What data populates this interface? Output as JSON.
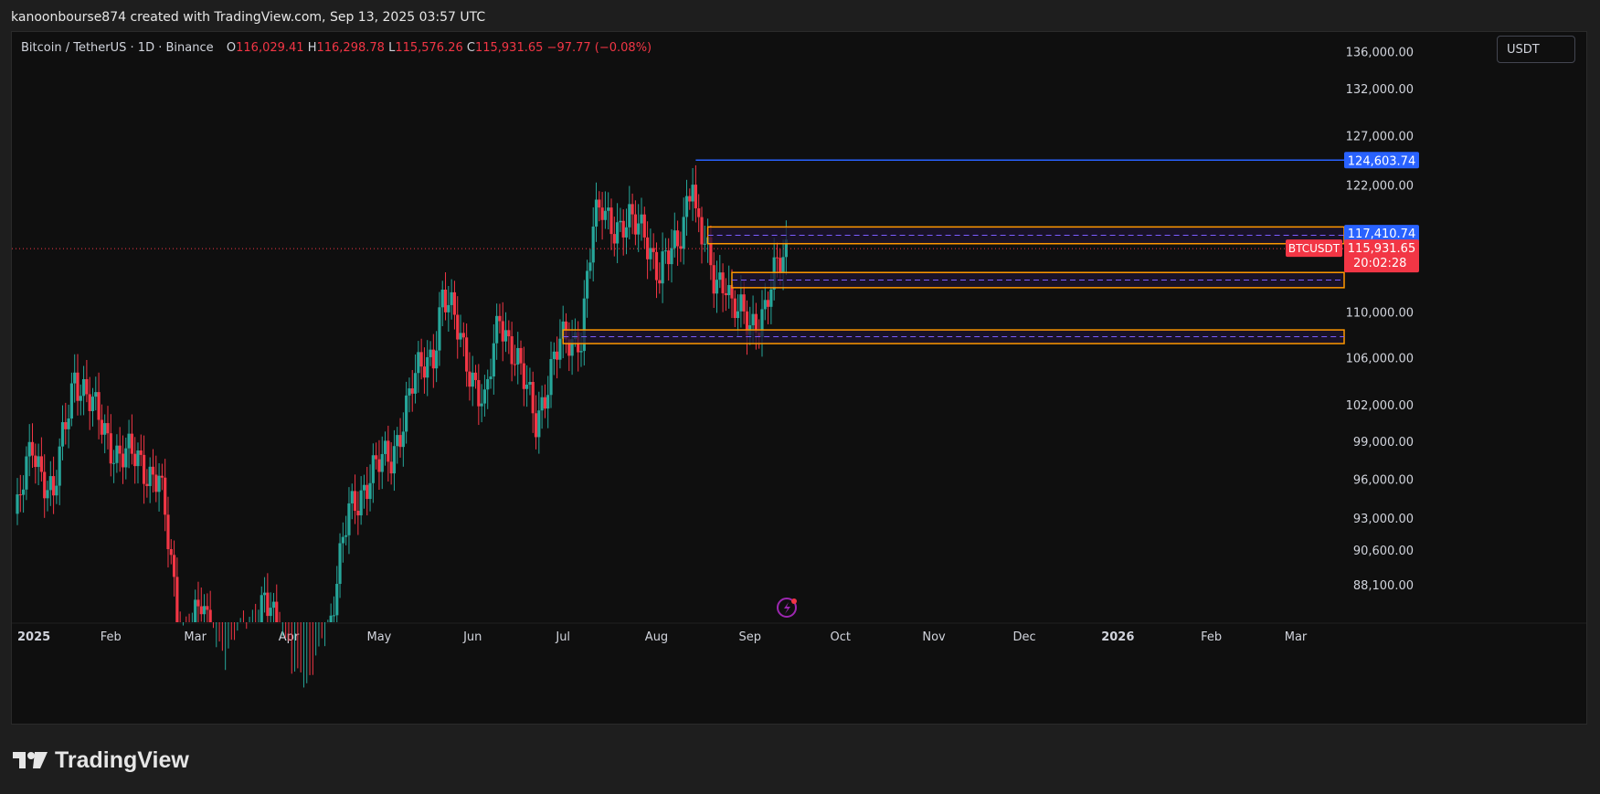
{
  "header": {
    "attribution": "kanoonbourse874 created with TradingView.com, Sep 13, 2025 03:57 UTC"
  },
  "legend": {
    "symbol": "Bitcoin / TetherUS · 1D · Binance",
    "o_label": "O",
    "o_value": "116,029.41",
    "h_label": "H",
    "h_value": "116,298.78",
    "l_label": "L",
    "l_value": "115,576.26",
    "c_label": "C",
    "c_value": "115,931.65",
    "change": "−97.77 (−0.08%)"
  },
  "toolbar": {
    "currency": "USDT"
  },
  "footer": {
    "brand": "TradingView"
  },
  "colors": {
    "up": "#26a69a",
    "down": "#f23645",
    "background": "#0f0f0f",
    "zone_border": "#ff9800",
    "zone_fill": "#1d1430",
    "zone_mid": "#7b5cff",
    "ath_line": "#2962ff",
    "price_line": "#f23645"
  },
  "chart_data": {
    "type": "candlestick",
    "symbol_tag": "BTCUSDT",
    "price_scale": {
      "ticks": [
        "136,000.00",
        "132,000.00",
        "127,000.00",
        "122,000.00",
        "110,000.00",
        "106,000.00",
        "102,000.00",
        "99,000.00",
        "96,000.00",
        "93,000.00",
        "90,600.00",
        "88,100.00"
      ],
      "range": [
        85500,
        137500
      ],
      "scale": "log"
    },
    "time_axis": [
      "2025",
      "Feb",
      "Mar",
      "Apr",
      "May",
      "Jun",
      "Jul",
      "Aug",
      "Sep",
      "Oct",
      "Nov",
      "Dec",
      "2026",
      "Feb",
      "Mar"
    ],
    "last_price": {
      "value": 115931.65,
      "label": "115,931.65",
      "countdown": "20:02:28"
    },
    "price_labels": [
      {
        "value": 124603.74,
        "label": "124,603.74",
        "kind": "ath"
      },
      {
        "value": 117410.74,
        "label": "117,410.74",
        "kind": "zone"
      }
    ],
    "zones": [
      {
        "top": 118000,
        "bottom": 116400,
        "mid": 117200,
        "start": "Aug 18"
      },
      {
        "top": 113700,
        "bottom": 112300,
        "mid": 113000,
        "start": "Aug 26"
      },
      {
        "top": 108500,
        "bottom": 107300,
        "mid": 107900,
        "start": "Jul 1"
      }
    ],
    "ath_line": {
      "value": 124603.74,
      "start": "Aug 14"
    },
    "close_path": [
      [
        "2025-01-01",
        93400
      ],
      [
        "2025-01-06",
        98800
      ],
      [
        "2025-01-13",
        94500
      ],
      [
        "2025-01-20",
        104900
      ],
      [
        "2025-01-27",
        101200
      ],
      [
        "2025-02-03",
        98200
      ],
      [
        "2025-02-10",
        97500
      ],
      [
        "2025-02-17",
        96200
      ],
      [
        "2025-02-24",
        84300
      ],
      [
        "2025-03-03",
        86400
      ],
      [
        "2025-03-10",
        81600
      ],
      [
        "2025-03-17",
        83800
      ],
      [
        "2025-03-24",
        87300
      ],
      [
        "2025-03-31",
        82500
      ],
      [
        "2025-04-07",
        79300
      ],
      [
        "2025-04-14",
        84700
      ],
      [
        "2025-04-21",
        93400
      ],
      [
        "2025-04-28",
        96500
      ],
      [
        "2025-05-05",
        97800
      ],
      [
        "2025-05-12",
        103600
      ],
      [
        "2025-05-19",
        106800
      ],
      [
        "2025-05-22",
        111600
      ],
      [
        "2025-05-28",
        107800
      ],
      [
        "2025-06-05",
        101500
      ],
      [
        "2025-06-10",
        110200
      ],
      [
        "2025-06-17",
        104500
      ],
      [
        "2025-06-22",
        101000
      ],
      [
        "2025-06-30",
        107100
      ],
      [
        "2025-07-07",
        108300
      ],
      [
        "2025-07-11",
        117600
      ],
      [
        "2025-07-14",
        119800
      ],
      [
        "2025-07-20",
        117900
      ],
      [
        "2025-07-28",
        118100
      ],
      [
        "2025-08-02",
        113200
      ],
      [
        "2025-08-08",
        116700
      ],
      [
        "2025-08-13",
        123300
      ],
      [
        "2025-08-14",
        118300
      ],
      [
        "2025-08-20",
        113500
      ],
      [
        "2025-08-24",
        113200
      ],
      [
        "2025-08-26",
        110100
      ],
      [
        "2025-09-01",
        109200
      ],
      [
        "2025-09-06",
        110200
      ],
      [
        "2025-09-10",
        113900
      ],
      [
        "2025-09-13",
        115931.65
      ]
    ]
  }
}
